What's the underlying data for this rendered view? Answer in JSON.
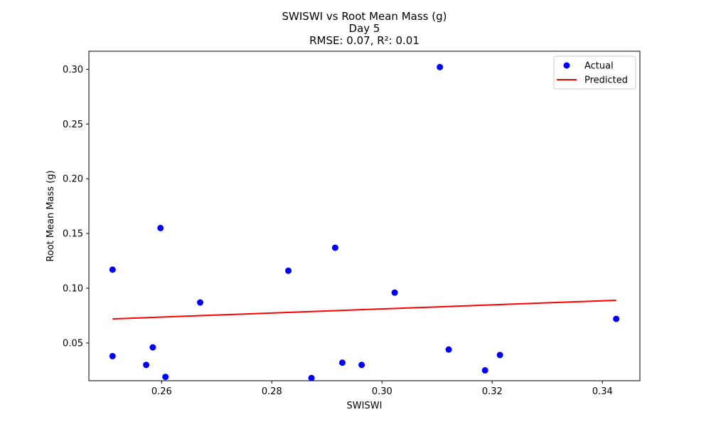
{
  "chart_data": {
    "type": "scatter",
    "title_lines": [
      "SWISWI vs Root Mean Mass (g)",
      "Day 5",
      "RMSE: 0.07, R²: 0.01"
    ],
    "xlabel": "SWISWI",
    "ylabel": "Root Mean Mass (g)",
    "xlim": [
      0.2468,
      0.3468
    ],
    "ylim": [
      0.0155,
      0.3165
    ],
    "xticks": [
      0.26,
      0.28,
      0.3,
      0.32,
      0.34
    ],
    "xtick_labels": [
      "0.26",
      "0.28",
      "0.30",
      "0.32",
      "0.34"
    ],
    "yticks": [
      0.05,
      0.1,
      0.15,
      0.2,
      0.25,
      0.3
    ],
    "ytick_labels": [
      "0.05",
      "0.10",
      "0.15",
      "0.20",
      "0.25",
      "0.30"
    ],
    "grid": false,
    "legend_position": "top-right",
    "series": [
      {
        "name": "Actual",
        "kind": "scatter",
        "color": "#0000ff",
        "points": [
          [
            0.2511,
            0.117
          ],
          [
            0.2511,
            0.038
          ],
          [
            0.2572,
            0.03
          ],
          [
            0.2584,
            0.046
          ],
          [
            0.2598,
            0.155
          ],
          [
            0.2607,
            0.019
          ],
          [
            0.267,
            0.087
          ],
          [
            0.283,
            0.116
          ],
          [
            0.2872,
            0.018
          ],
          [
            0.2915,
            0.137
          ],
          [
            0.2928,
            0.032
          ],
          [
            0.2963,
            0.03
          ],
          [
            0.3023,
            0.096
          ],
          [
            0.3105,
            0.302
          ],
          [
            0.3121,
            0.044
          ],
          [
            0.3187,
            0.025
          ],
          [
            0.3214,
            0.039
          ],
          [
            0.3425,
            0.072
          ]
        ]
      },
      {
        "name": "Predicted",
        "kind": "line",
        "color": "#ff0000",
        "points": [
          [
            0.2511,
            0.072
          ],
          [
            0.3425,
            0.089
          ]
        ]
      }
    ]
  }
}
